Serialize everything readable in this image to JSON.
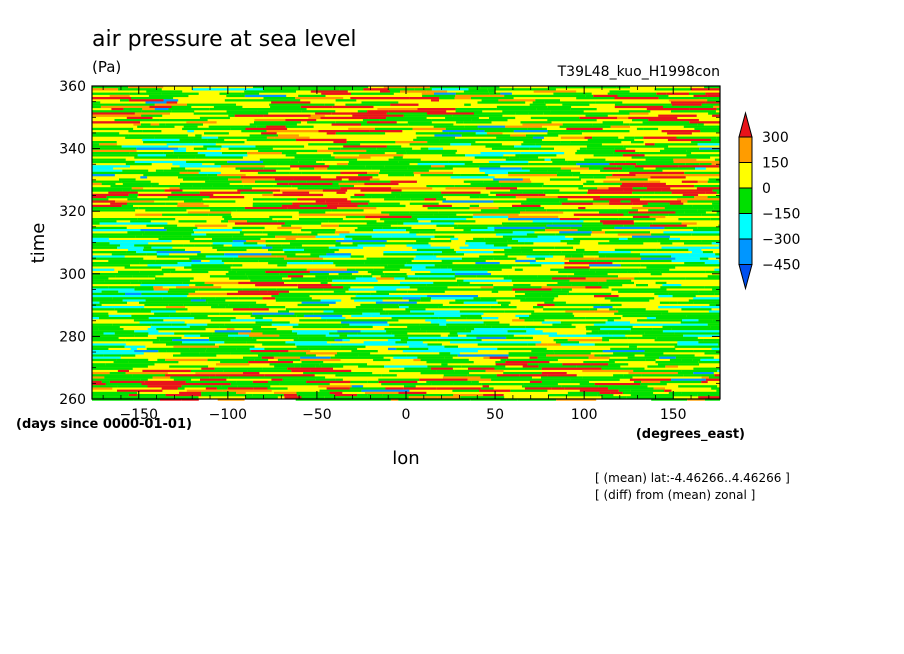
{
  "chart_data": {
    "type": "heatmap",
    "title": "air pressure at sea level",
    "units": "(Pa)",
    "experiment": "T39L48_kuo_H1998con",
    "xlabel": "lon",
    "x_units": "(degrees_east)",
    "ylabel": "time",
    "y_units": "(days since 0000-01-01)",
    "xlim": [
      -176.25,
      176.25
    ],
    "ylim": [
      260,
      360
    ],
    "x_ticks": [
      -150,
      -100,
      -50,
      0,
      50,
      100,
      150
    ],
    "y_ticks": [
      260,
      280,
      300,
      320,
      340,
      360
    ],
    "colorbar": {
      "levels": [
        300,
        150,
        0,
        -150,
        -300,
        -450
      ],
      "colors": [
        "#e8141a",
        "#ff9c00",
        "#ffff00",
        "#00e000",
        "#00ffff",
        "#0096ff",
        "#0050f0"
      ]
    },
    "notes": [
      "[ (mean) lat:-4.46266..4.46266 ]",
      "[ (diff) from (mean) zonal ]"
    ]
  }
}
